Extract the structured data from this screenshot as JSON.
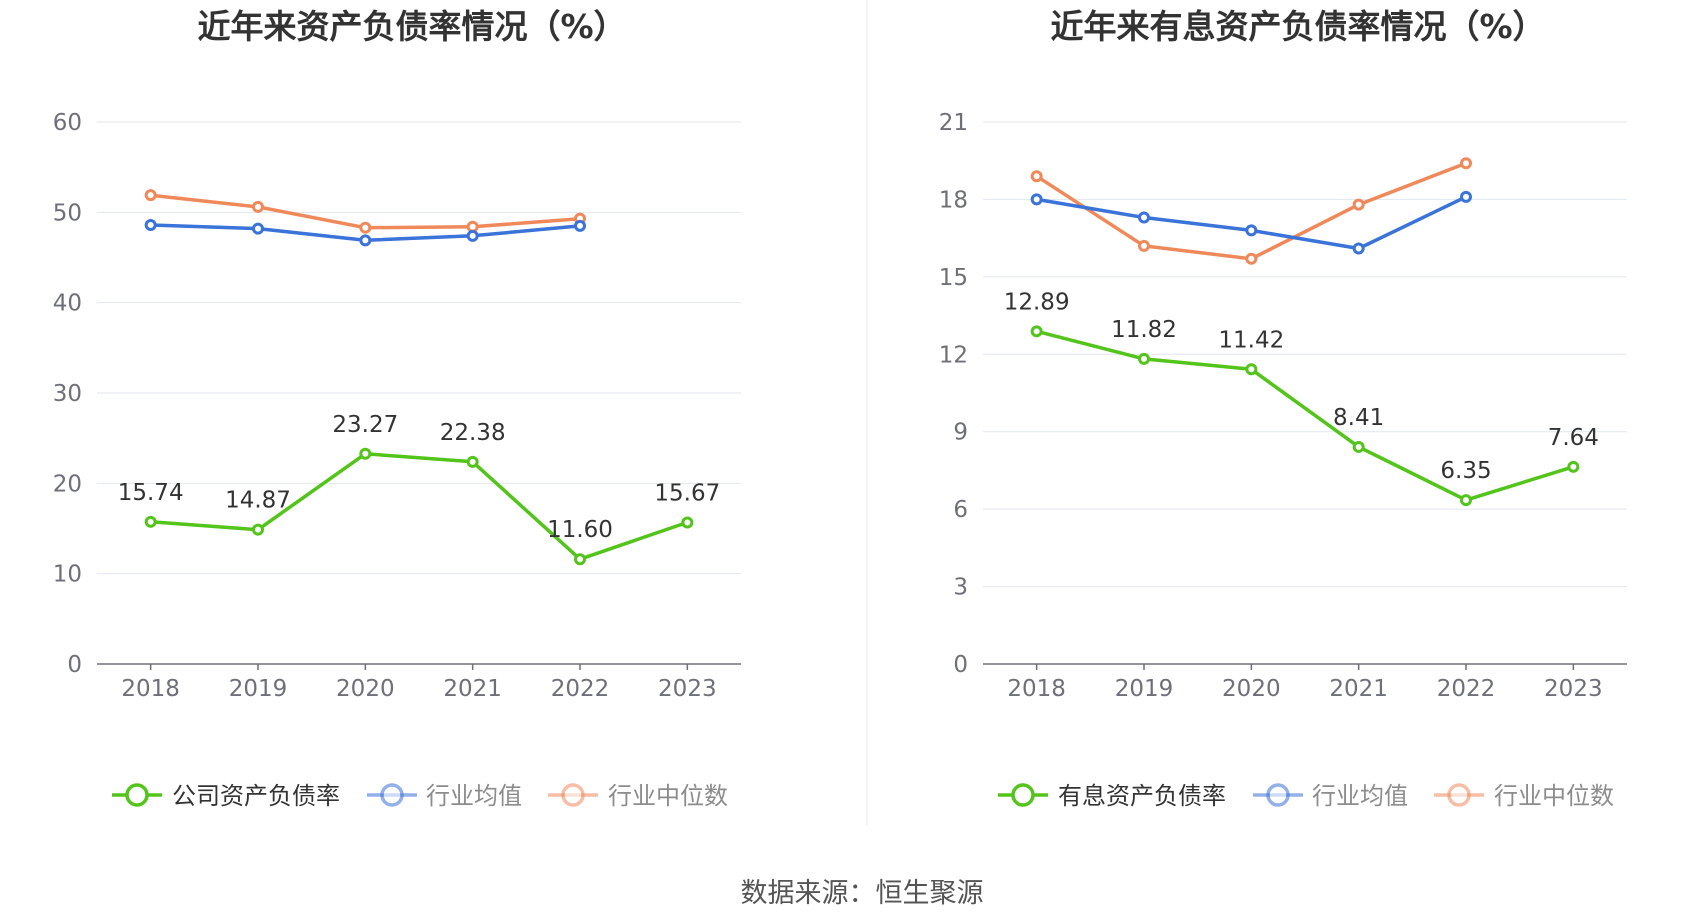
{
  "source_label": "数据来源：恒生聚源",
  "chart_data": [
    {
      "type": "line",
      "title": "近年来资产负债率情况（%）",
      "categories": [
        "2018",
        "2019",
        "2020",
        "2021",
        "2022",
        "2023"
      ],
      "ylim": [
        0,
        60
      ],
      "yticks": [
        0,
        10,
        20,
        30,
        40,
        50,
        60
      ],
      "grid": true,
      "legend_position": "bottom",
      "series": [
        {
          "name": "公司资产负债率",
          "color": "#52c41a",
          "values": [
            15.74,
            14.87,
            23.27,
            22.38,
            11.6,
            15.67
          ],
          "labels": [
            "15.74",
            "14.87",
            "23.27",
            "22.38",
            "11.60",
            "15.67"
          ]
        },
        {
          "name": "行业均值",
          "color": "#3a73d9",
          "values": [
            48.6,
            48.2,
            46.9,
            47.4,
            48.5,
            null
          ]
        },
        {
          "name": "行业中位数",
          "color": "#f0895a",
          "values": [
            51.9,
            50.6,
            48.3,
            48.4,
            49.3,
            null
          ]
        }
      ]
    },
    {
      "type": "line",
      "title": "近年来有息资产负债率情况（%）",
      "categories": [
        "2018",
        "2019",
        "2020",
        "2021",
        "2022",
        "2023"
      ],
      "ylim": [
        0,
        21
      ],
      "yticks": [
        0,
        3,
        6,
        9,
        12,
        15,
        18,
        21
      ],
      "grid": true,
      "legend_position": "bottom",
      "series": [
        {
          "name": "有息资产负债率",
          "color": "#52c41a",
          "values": [
            12.89,
            11.82,
            11.42,
            8.41,
            6.35,
            7.64
          ],
          "labels": [
            "12.89",
            "11.82",
            "11.42",
            "8.41",
            "6.35",
            "7.64"
          ]
        },
        {
          "name": "行业均值",
          "color": "#3a73d9",
          "values": [
            18.0,
            17.3,
            16.8,
            16.1,
            18.1,
            null
          ]
        },
        {
          "name": "行业中位数",
          "color": "#f0895a",
          "values": [
            18.9,
            16.2,
            15.7,
            17.8,
            19.4,
            null
          ]
        }
      ]
    }
  ]
}
